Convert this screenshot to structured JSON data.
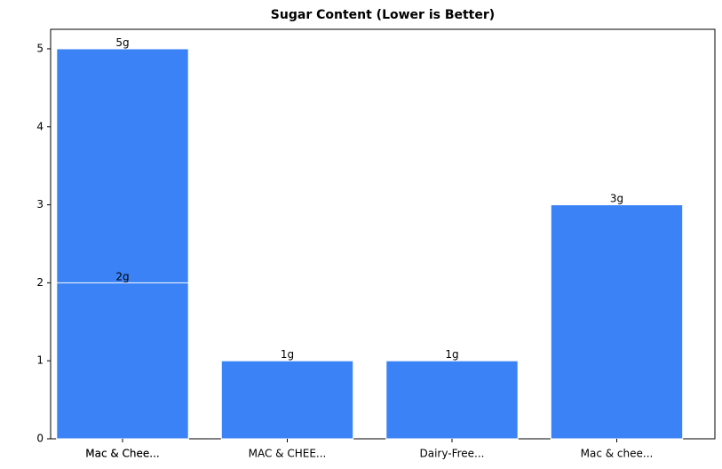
{
  "chart_data": {
    "type": "bar",
    "title": "Sugar Content (Lower is Better)",
    "categories": [
      "Mac & Chee...",
      "Mac & Chee...",
      "MAC & CHEE...",
      "Dairy-Free...",
      "Mac & chee..."
    ],
    "values": [
      5,
      2,
      1,
      1,
      3
    ],
    "value_labels": [
      "5g",
      "2g",
      "1g",
      "1g",
      "3g"
    ],
    "color": "#3b82f6",
    "ylim": [
      0,
      5.25
    ],
    "yticks": [
      0,
      1,
      2,
      3,
      4,
      5
    ],
    "grid": false
  }
}
